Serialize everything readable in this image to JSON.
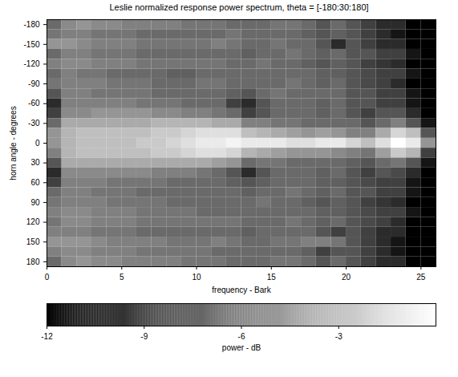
{
  "chart_data": {
    "type": "heatmap",
    "title": "Leslie normalized response power spectrum, theta = [-180:30:180]",
    "x_label": "frequency - Bark",
    "y_label": "horn angle - degrees",
    "xlim": [
      0,
      26
    ],
    "ylim": [
      -187.5,
      187.5
    ],
    "xticks": [
      0,
      5,
      10,
      15,
      20,
      25
    ],
    "yticks": [
      -180,
      -150,
      -120,
      -90,
      -60,
      -30,
      0,
      30,
      60,
      90,
      120,
      150,
      180
    ],
    "x": [
      0.5,
      1.5,
      2.5,
      3.5,
      4.5,
      5.5,
      6.5,
      7.5,
      8.5,
      9.5,
      10.5,
      11.5,
      12.5,
      13.5,
      14.5,
      15.5,
      16.5,
      17.5,
      18.5,
      19.5,
      20.5,
      21.5,
      22.5,
      23.5,
      24.5,
      25.5
    ],
    "y": [
      -180,
      -165,
      -150,
      -135,
      -120,
      -105,
      -90,
      -75,
      -60,
      -45,
      -30,
      -15,
      0,
      15,
      30,
      45,
      60,
      75,
      90,
      105,
      120,
      135,
      150,
      165,
      180
    ],
    "values": [
      [
        -7,
        -5.5,
        -5,
        -5.5,
        -5.5,
        -6,
        -6,
        -6,
        -6,
        -6.5,
        -6.5,
        -6.5,
        -7,
        -7,
        -7,
        -6.5,
        -6.5,
        -7,
        -8,
        -7,
        -8,
        -9,
        -10,
        -10,
        -12,
        -12
      ],
      [
        -6.5,
        -6,
        -6,
        -6.5,
        -6.5,
        -6.5,
        -7,
        -7,
        -7,
        -7,
        -7,
        -7,
        -6.5,
        -7,
        -7,
        -7,
        -7,
        -7.5,
        -8,
        -7.5,
        -8,
        -9,
        -10,
        -11,
        -12,
        -12
      ],
      [
        -5,
        -5,
        -5.5,
        -6,
        -6,
        -6,
        -6.5,
        -6.5,
        -6.5,
        -6.5,
        -6.5,
        -6,
        -6.5,
        -7,
        -7,
        -6.5,
        -7,
        -7,
        -8,
        -10,
        -8,
        -9,
        -10,
        -10,
        -12,
        -12
      ],
      [
        -7,
        -6,
        -6,
        -6.5,
        -6.5,
        -6.5,
        -7,
        -7,
        -7,
        -7,
        -7,
        -7,
        -7,
        -7.5,
        -7,
        -7,
        -6.5,
        -7,
        -7.5,
        -7,
        -8,
        -8,
        -9,
        -9,
        -11,
        -12
      ],
      [
        -6,
        -5.5,
        -5.5,
        -6,
        -6,
        -6,
        -6.5,
        -6.5,
        -6.5,
        -6.5,
        -6.5,
        -6.5,
        -7,
        -7,
        -6.5,
        -7,
        -7,
        -7.5,
        -8,
        -7.5,
        -8,
        -9,
        -9.5,
        -10,
        -12,
        -12
      ],
      [
        -7,
        -6,
        -6.5,
        -6.5,
        -7,
        -7,
        -7,
        -7,
        -7.5,
        -7.5,
        -7,
        -7,
        -7,
        -7,
        -7,
        -7,
        -7,
        -7,
        -7.5,
        -7.5,
        -8,
        -8.5,
        -9,
        -9,
        -11,
        -12
      ],
      [
        -6.5,
        -6,
        -6,
        -6,
        -6.5,
        -6.5,
        -6.5,
        -7,
        -7,
        -7,
        -6.5,
        -6.5,
        -7,
        -7,
        -7,
        -7,
        -6.5,
        -7,
        -7.5,
        -7,
        -8,
        -8.5,
        -9,
        -10,
        -12,
        -12
      ],
      [
        -8,
        -6,
        -6,
        -6.5,
        -6.5,
        -6.5,
        -6.5,
        -7,
        -7,
        -7,
        -7,
        -7,
        -7.5,
        -8,
        -7,
        -6.5,
        -7,
        -7,
        -7,
        -7,
        -8,
        -8,
        -9,
        -9,
        -11,
        -12
      ],
      [
        -10,
        -6,
        -6,
        -6,
        -6,
        -6,
        -6.5,
        -6.5,
        -6.5,
        -7,
        -7,
        -7,
        -9,
        -10,
        -8,
        -7,
        -7,
        -7,
        -7.5,
        -7,
        -8,
        -8,
        -9,
        -9,
        -11,
        -12
      ],
      [
        -9,
        -5.5,
        -5.5,
        -5,
        -5,
        -5,
        -5,
        -5.5,
        -5.5,
        -6,
        -6,
        -6.5,
        -7,
        -9,
        -8,
        -7,
        -7,
        -7,
        -7.5,
        -7,
        -8,
        -9,
        -8,
        -8,
        -10,
        -12
      ],
      [
        -7,
        -4,
        -4,
        -4,
        -4,
        -4,
        -4,
        -3.5,
        -3.5,
        -3.5,
        -3.5,
        -4,
        -4,
        -6,
        -6,
        -6.5,
        -6.5,
        -7,
        -7,
        -7,
        -7,
        -8,
        -7,
        -6,
        -8,
        -11
      ],
      [
        -5,
        -3.5,
        -3,
        -3,
        -3,
        -3,
        -3,
        -2.5,
        -2.5,
        -2,
        -1.5,
        -1.5,
        -1.5,
        -3,
        -3.5,
        -4,
        -4.5,
        -5,
        -4.5,
        -5,
        -6,
        -6,
        -4,
        -2,
        -3,
        -8
      ],
      [
        -5,
        -3.5,
        -3,
        -3,
        -3,
        -3,
        -2.5,
        -2.5,
        -2,
        -1.5,
        -1,
        -1,
        -0.5,
        -1,
        -1,
        -1,
        -1.5,
        -1.5,
        -1,
        -1,
        -2,
        -3,
        -1.5,
        0,
        -1,
        -5
      ],
      [
        -6,
        -3.5,
        -3,
        -3,
        -3,
        -3,
        -3,
        -2.5,
        -2.5,
        -2,
        -1.5,
        -1.5,
        -2,
        -3.5,
        -4,
        -4.5,
        -5,
        -5,
        -5,
        -5.5,
        -6,
        -6.5,
        -4.5,
        -2.5,
        -3.5,
        -9
      ],
      [
        -8,
        -4,
        -4,
        -4,
        -4,
        -4,
        -4,
        -4,
        -4,
        -4,
        -4,
        -4.5,
        -5,
        -7,
        -6.5,
        -6.5,
        -7,
        -7,
        -7,
        -7,
        -7.5,
        -8,
        -7,
        -6.5,
        -8,
        -11
      ],
      [
        -10,
        -5.5,
        -5.5,
        -5.5,
        -5.5,
        -5.5,
        -5.5,
        -6,
        -6,
        -6,
        -6.5,
        -7,
        -8,
        -10,
        -8,
        -7,
        -7,
        -7,
        -7.5,
        -7,
        -8,
        -9,
        -8,
        -8.5,
        -10,
        -12
      ],
      [
        -9,
        -6,
        -6,
        -6,
        -6.5,
        -6.5,
        -6.5,
        -6.5,
        -7,
        -7,
        -7,
        -7,
        -7.5,
        -8,
        -7.5,
        -7,
        -7,
        -7,
        -7.5,
        -7.5,
        -8,
        -8.5,
        -9,
        -9,
        -11,
        -12
      ],
      [
        -7,
        -6,
        -6,
        -6.5,
        -6.5,
        -6.5,
        -7,
        -7,
        -7,
        -7,
        -7,
        -7,
        -7,
        -7.5,
        -7,
        -7,
        -6.5,
        -7,
        -7.5,
        -7,
        -8,
        -8,
        -9,
        -9,
        -11,
        -12
      ],
      [
        -6.5,
        -6,
        -6,
        -6,
        -6.5,
        -6.5,
        -6.5,
        -6.5,
        -7,
        -7,
        -7,
        -7,
        -7,
        -7,
        -6.5,
        -7,
        -7,
        -7.5,
        -8,
        -7.5,
        -8,
        -9,
        -9.5,
        -10,
        -12,
        -12
      ],
      [
        -6,
        -5.5,
        -5.5,
        -6,
        -6,
        -6,
        -6.5,
        -6.5,
        -6.5,
        -6.5,
        -7,
        -7,
        -7,
        -7,
        -7,
        -7,
        -7,
        -7,
        -7.5,
        -7.5,
        -8,
        -8.5,
        -9,
        -9,
        -11,
        -12
      ],
      [
        -6.5,
        -5.5,
        -5.5,
        -6,
        -6,
        -6,
        -6.5,
        -6.5,
        -6.5,
        -6.5,
        -6.5,
        -6.5,
        -6.5,
        -7,
        -7,
        -7,
        -6.5,
        -7,
        -7.5,
        -7,
        -8,
        -8.5,
        -9,
        -10,
        -12,
        -12
      ],
      [
        -6,
        -6,
        -6,
        -6.5,
        -6.5,
        -6.5,
        -7,
        -7,
        -7,
        -7,
        -7,
        -7,
        -7,
        -7.5,
        -7,
        -7,
        -7,
        -7,
        -8,
        -9,
        -8,
        -9,
        -10,
        -10,
        -12,
        -12
      ],
      [
        -5,
        -5,
        -5,
        -5.5,
        -6,
        -6,
        -6,
        -6,
        -6.5,
        -6.5,
        -6.5,
        -6,
        -6.5,
        -7,
        -7,
        -6.5,
        -6.5,
        -6,
        -6,
        -6.5,
        -8,
        -9,
        -10,
        -11,
        -12,
        -12
      ],
      [
        -6,
        -5.5,
        -5.5,
        -6,
        -6,
        -6,
        -6.5,
        -6.5,
        -6.5,
        -6.5,
        -6.5,
        -7,
        -7,
        -7,
        -7,
        -7,
        -7,
        -7.5,
        -9,
        -8,
        -8,
        -9,
        -10,
        -11,
        -12,
        -12
      ],
      [
        -7,
        -5.5,
        -5,
        -5.5,
        -5.5,
        -6,
        -6,
        -6,
        -6,
        -6.5,
        -6.5,
        -6.5,
        -7,
        -7,
        -7,
        -6.5,
        -6.5,
        -7,
        -8,
        -7,
        -8,
        -9,
        -10,
        -10,
        -12,
        -12
      ]
    ],
    "colorbar": {
      "range": [
        -12,
        0
      ],
      "ticks": [
        -12,
        -9,
        -6,
        -3
      ],
      "label": "power - dB"
    }
  }
}
